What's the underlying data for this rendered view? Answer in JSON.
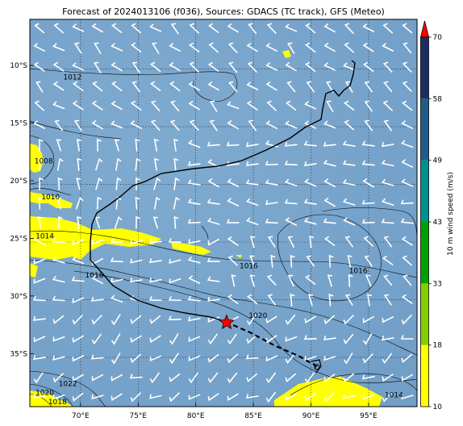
{
  "title": "Forecast of 2024013106 (f036), Sources: GDACS (TC track), GFS (Meteo)",
  "map": {
    "lon_range": [
      65.6,
      99.2
    ],
    "lat_range": [
      -39.6,
      -6.0
    ],
    "x_ticks": [
      {
        "lon": 70,
        "label": "70°E"
      },
      {
        "lon": 75,
        "label": "75°E"
      },
      {
        "lon": 80,
        "label": "80°E"
      },
      {
        "lon": 85,
        "label": "85°E"
      },
      {
        "lon": 90,
        "label": "90°E"
      },
      {
        "lon": 95,
        "label": "95°E"
      }
    ],
    "y_ticks": [
      {
        "lat": -10,
        "label": "10°S"
      },
      {
        "lat": -15,
        "label": "15°S"
      },
      {
        "lat": -20,
        "label": "20°S"
      },
      {
        "lat": -25,
        "label": "25°S"
      },
      {
        "lat": -30,
        "label": "30°S"
      },
      {
        "lat": -35,
        "label": "35°S"
      }
    ],
    "background_color": "#7aa6cc",
    "gridlines": true
  },
  "colorbar": {
    "label": "10 m wind speed (m/s)",
    "levels": [
      "10",
      "18",
      "33",
      "43",
      "49",
      "58",
      "70"
    ],
    "colors": [
      "#ffff00",
      "#80d000",
      "#00a000",
      "#009090",
      "#205c88",
      "#1e2c60"
    ],
    "extend_color": "#ff0000"
  },
  "isobar_labels": [
    {
      "text": "1012",
      "lon": 69.3,
      "lat": -11.2
    },
    {
      "text": "1008",
      "lon": 66.8,
      "lat": -18.5
    },
    {
      "text": "1010",
      "lon": 67.4,
      "lat": -21.6
    },
    {
      "text": "1014",
      "lon": 66.9,
      "lat": -25.0
    },
    {
      "text": "1018",
      "lon": 71.2,
      "lat": -28.4
    },
    {
      "text": "1016",
      "lon": 84.6,
      "lat": -27.6
    },
    {
      "text": "1016",
      "lon": 94.1,
      "lat": -28.0
    },
    {
      "text": "1020",
      "lon": 85.4,
      "lat": -31.9
    },
    {
      "text": "1022",
      "lon": 68.9,
      "lat": -37.8
    },
    {
      "text": "1020",
      "lon": 66.9,
      "lat": -38.6
    },
    {
      "text": "1018",
      "lon": 68.0,
      "lat": -39.4
    },
    {
      "text": "1014",
      "lon": 97.2,
      "lat": -38.8
    }
  ]
}
